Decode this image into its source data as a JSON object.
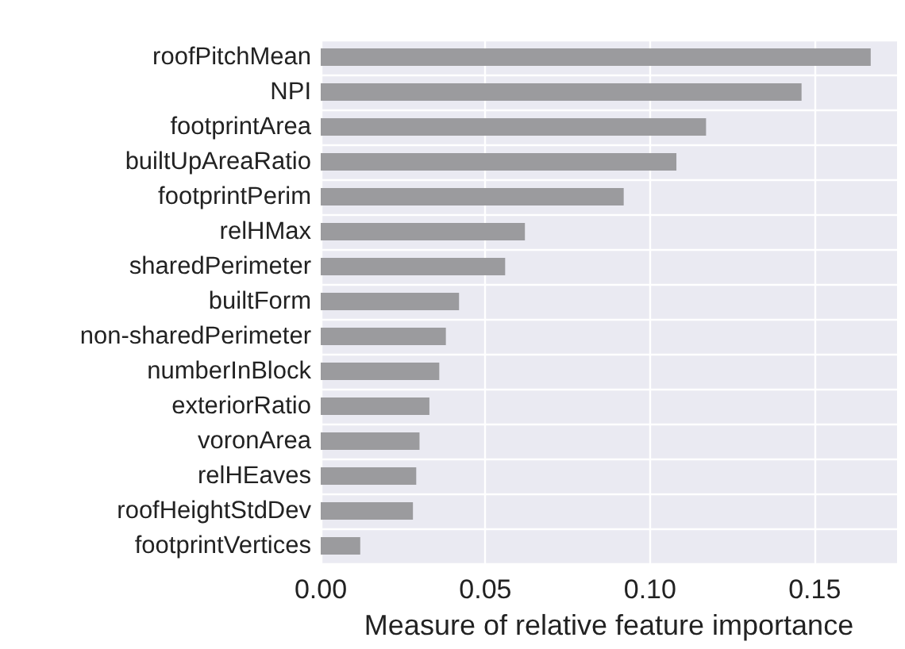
{
  "chart_data": {
    "type": "bar",
    "orientation": "horizontal",
    "xlabel": "Measure of relative feature importance",
    "categories": [
      "roofPitchMean",
      "NPI",
      "footprintArea",
      "builtUpAreaRatio",
      "footprintPerim",
      "relHMax",
      "sharedPerimeter",
      "builtForm",
      "non-sharedPerimeter",
      "numberInBlock",
      "exteriorRatio",
      "voronArea",
      "relHEaves",
      "roofHeightStdDev",
      "footprintVertices"
    ],
    "values": [
      0.167,
      0.146,
      0.117,
      0.108,
      0.092,
      0.062,
      0.056,
      0.042,
      0.038,
      0.036,
      0.033,
      0.03,
      0.029,
      0.028,
      0.012
    ],
    "color": "#9b9b9e",
    "xlim": [
      0,
      0.175
    ],
    "xticks": [
      {
        "value": 0,
        "label": "0.00"
      },
      {
        "value": 0.05,
        "label": "0.05"
      },
      {
        "value": 0.1,
        "label": "0.10"
      },
      {
        "value": 0.15,
        "label": "0.15"
      }
    ],
    "grid": true
  }
}
